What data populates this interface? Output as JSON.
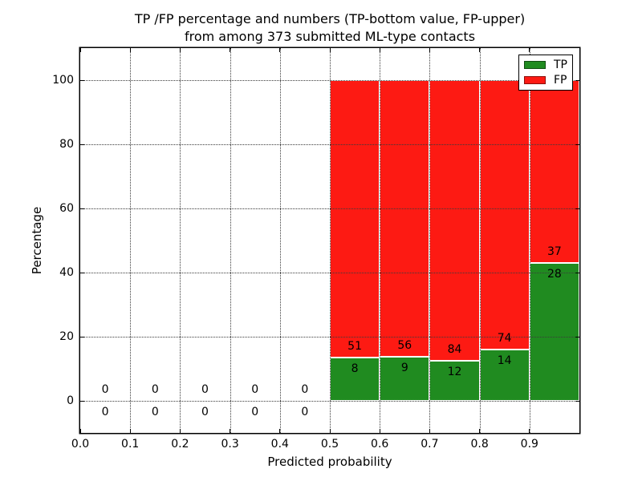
{
  "chart_data": {
    "type": "bar",
    "stacked": true,
    "title_lines": [
      "TP /FP percentage and numbers (TP-bottom value, FP-upper)",
      "from among 373 submitted ML-type contacts"
    ],
    "xlabel": "Predicted probability",
    "ylabel": "Percentage",
    "total_submitted": 373,
    "xlim": [
      0.0,
      1.0
    ],
    "ylim": [
      -10,
      110
    ],
    "xtick_values": [
      0.0,
      0.1,
      0.2,
      0.3,
      0.4,
      0.5,
      0.6,
      0.7,
      0.8,
      0.9
    ],
    "xtick_labels": [
      "0.0",
      "0.1",
      "0.2",
      "0.3",
      "0.4",
      "0.5",
      "0.6",
      "0.7",
      "0.8",
      "0.9"
    ],
    "ytick_values": [
      0,
      20,
      40,
      60,
      80,
      100
    ],
    "ytick_labels": [
      "0",
      "20",
      "40",
      "60",
      "80",
      "100"
    ],
    "grid": {
      "style": "dotted",
      "over_data": true
    },
    "legend": {
      "position": "upper-right",
      "entries": [
        {
          "name": "TP",
          "color": "#208b20"
        },
        {
          "name": "FP",
          "color": "#fd1a13"
        }
      ]
    },
    "colors": {
      "tp": "#208b20",
      "fp": "#fd1a13",
      "bar_edge": "#ffffff"
    },
    "bins": [
      {
        "x0": 0.0,
        "x1": 0.1,
        "tp_count": 0,
        "fp_count": 0,
        "tp_pct": 0,
        "fp_pct": 0
      },
      {
        "x0": 0.1,
        "x1": 0.2,
        "tp_count": 0,
        "fp_count": 0,
        "tp_pct": 0,
        "fp_pct": 0
      },
      {
        "x0": 0.2,
        "x1": 0.3,
        "tp_count": 0,
        "fp_count": 0,
        "tp_pct": 0,
        "fp_pct": 0
      },
      {
        "x0": 0.3,
        "x1": 0.4,
        "tp_count": 0,
        "fp_count": 0,
        "tp_pct": 0,
        "fp_pct": 0
      },
      {
        "x0": 0.4,
        "x1": 0.5,
        "tp_count": 0,
        "fp_count": 0,
        "tp_pct": 0,
        "fp_pct": 0
      },
      {
        "x0": 0.5,
        "x1": 0.6,
        "tp_count": 8,
        "fp_count": 51,
        "tp_pct": 13.56,
        "fp_pct": 86.44
      },
      {
        "x0": 0.6,
        "x1": 0.7,
        "tp_count": 9,
        "fp_count": 56,
        "tp_pct": 13.85,
        "fp_pct": 86.15
      },
      {
        "x0": 0.7,
        "x1": 0.8,
        "tp_count": 12,
        "fp_count": 84,
        "tp_pct": 12.5,
        "fp_pct": 87.5
      },
      {
        "x0": 0.8,
        "x1": 0.9,
        "tp_count": 14,
        "fp_count": 74,
        "tp_pct": 15.91,
        "fp_pct": 84.09
      },
      {
        "x0": 0.9,
        "x1": 1.0,
        "tp_count": 28,
        "fp_count": 37,
        "tp_pct": 43.08,
        "fp_pct": 56.92
      }
    ]
  }
}
